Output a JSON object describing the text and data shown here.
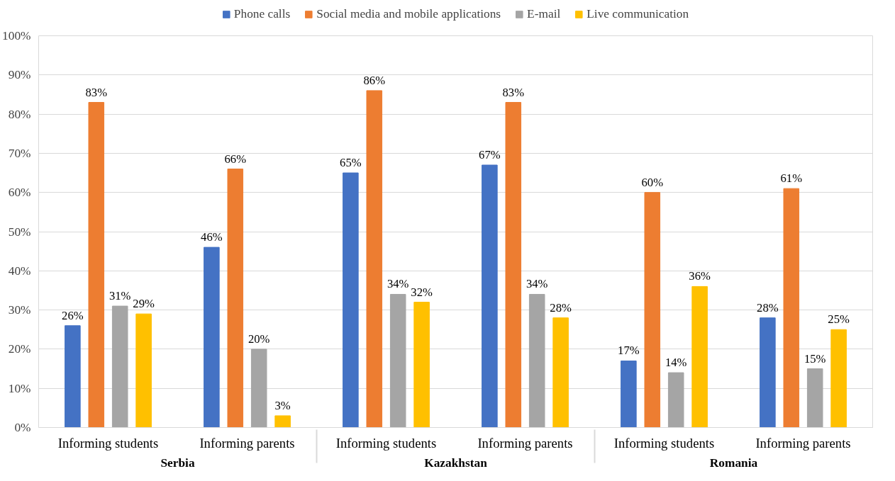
{
  "chart_data": {
    "type": "bar",
    "categories": [
      "Informing students",
      "Informing parents",
      "Informing students",
      "Informing parents",
      "Informing students",
      "Informing parents"
    ],
    "annotations": [
      "Serbia",
      "Kazakhstan",
      "Romania"
    ],
    "series": [
      {
        "name": "Phone calls",
        "color": "#4472c4",
        "values": [
          26,
          46,
          65,
          67,
          17,
          28
        ],
        "value_labels": [
          "26%",
          "46%",
          "65%",
          "67%",
          "17%",
          "28%"
        ]
      },
      {
        "name": "Social media and mobile applications",
        "color": "#ed7d31",
        "values": [
          83,
          66,
          86,
          83,
          60,
          61
        ],
        "value_labels": [
          "83%",
          "66%",
          "86%",
          "83%",
          "60%",
          "61%"
        ]
      },
      {
        "name": "E-mail",
        "color": "#a5a5a5",
        "values": [
          31,
          20,
          34,
          34,
          14,
          15
        ],
        "value_labels": [
          "31%",
          "20%",
          "34%",
          "34%",
          "14%",
          "15%"
        ]
      },
      {
        "name": "Live communication",
        "color": "#ffc000",
        "values": [
          29,
          3,
          32,
          28,
          36,
          25
        ],
        "value_labels": [
          "29%",
          "3%",
          "32%",
          "28%",
          "36%",
          "25%"
        ]
      }
    ],
    "ylim": [
      0,
      100
    ],
    "yticks": [
      {
        "value": 0,
        "label": "0%"
      },
      {
        "value": 10,
        "label": "10%"
      },
      {
        "value": 20,
        "label": "20%"
      },
      {
        "value": 30,
        "label": "30%"
      },
      {
        "value": 40,
        "label": "40%"
      },
      {
        "value": 50,
        "label": "50%"
      },
      {
        "value": 60,
        "label": "60%"
      },
      {
        "value": 70,
        "label": "70%"
      },
      {
        "value": 80,
        "label": "80%"
      },
      {
        "value": 90,
        "label": "90%"
      },
      {
        "value": 100,
        "label": "100%"
      }
    ],
    "grid": "y",
    "legend": "top"
  }
}
